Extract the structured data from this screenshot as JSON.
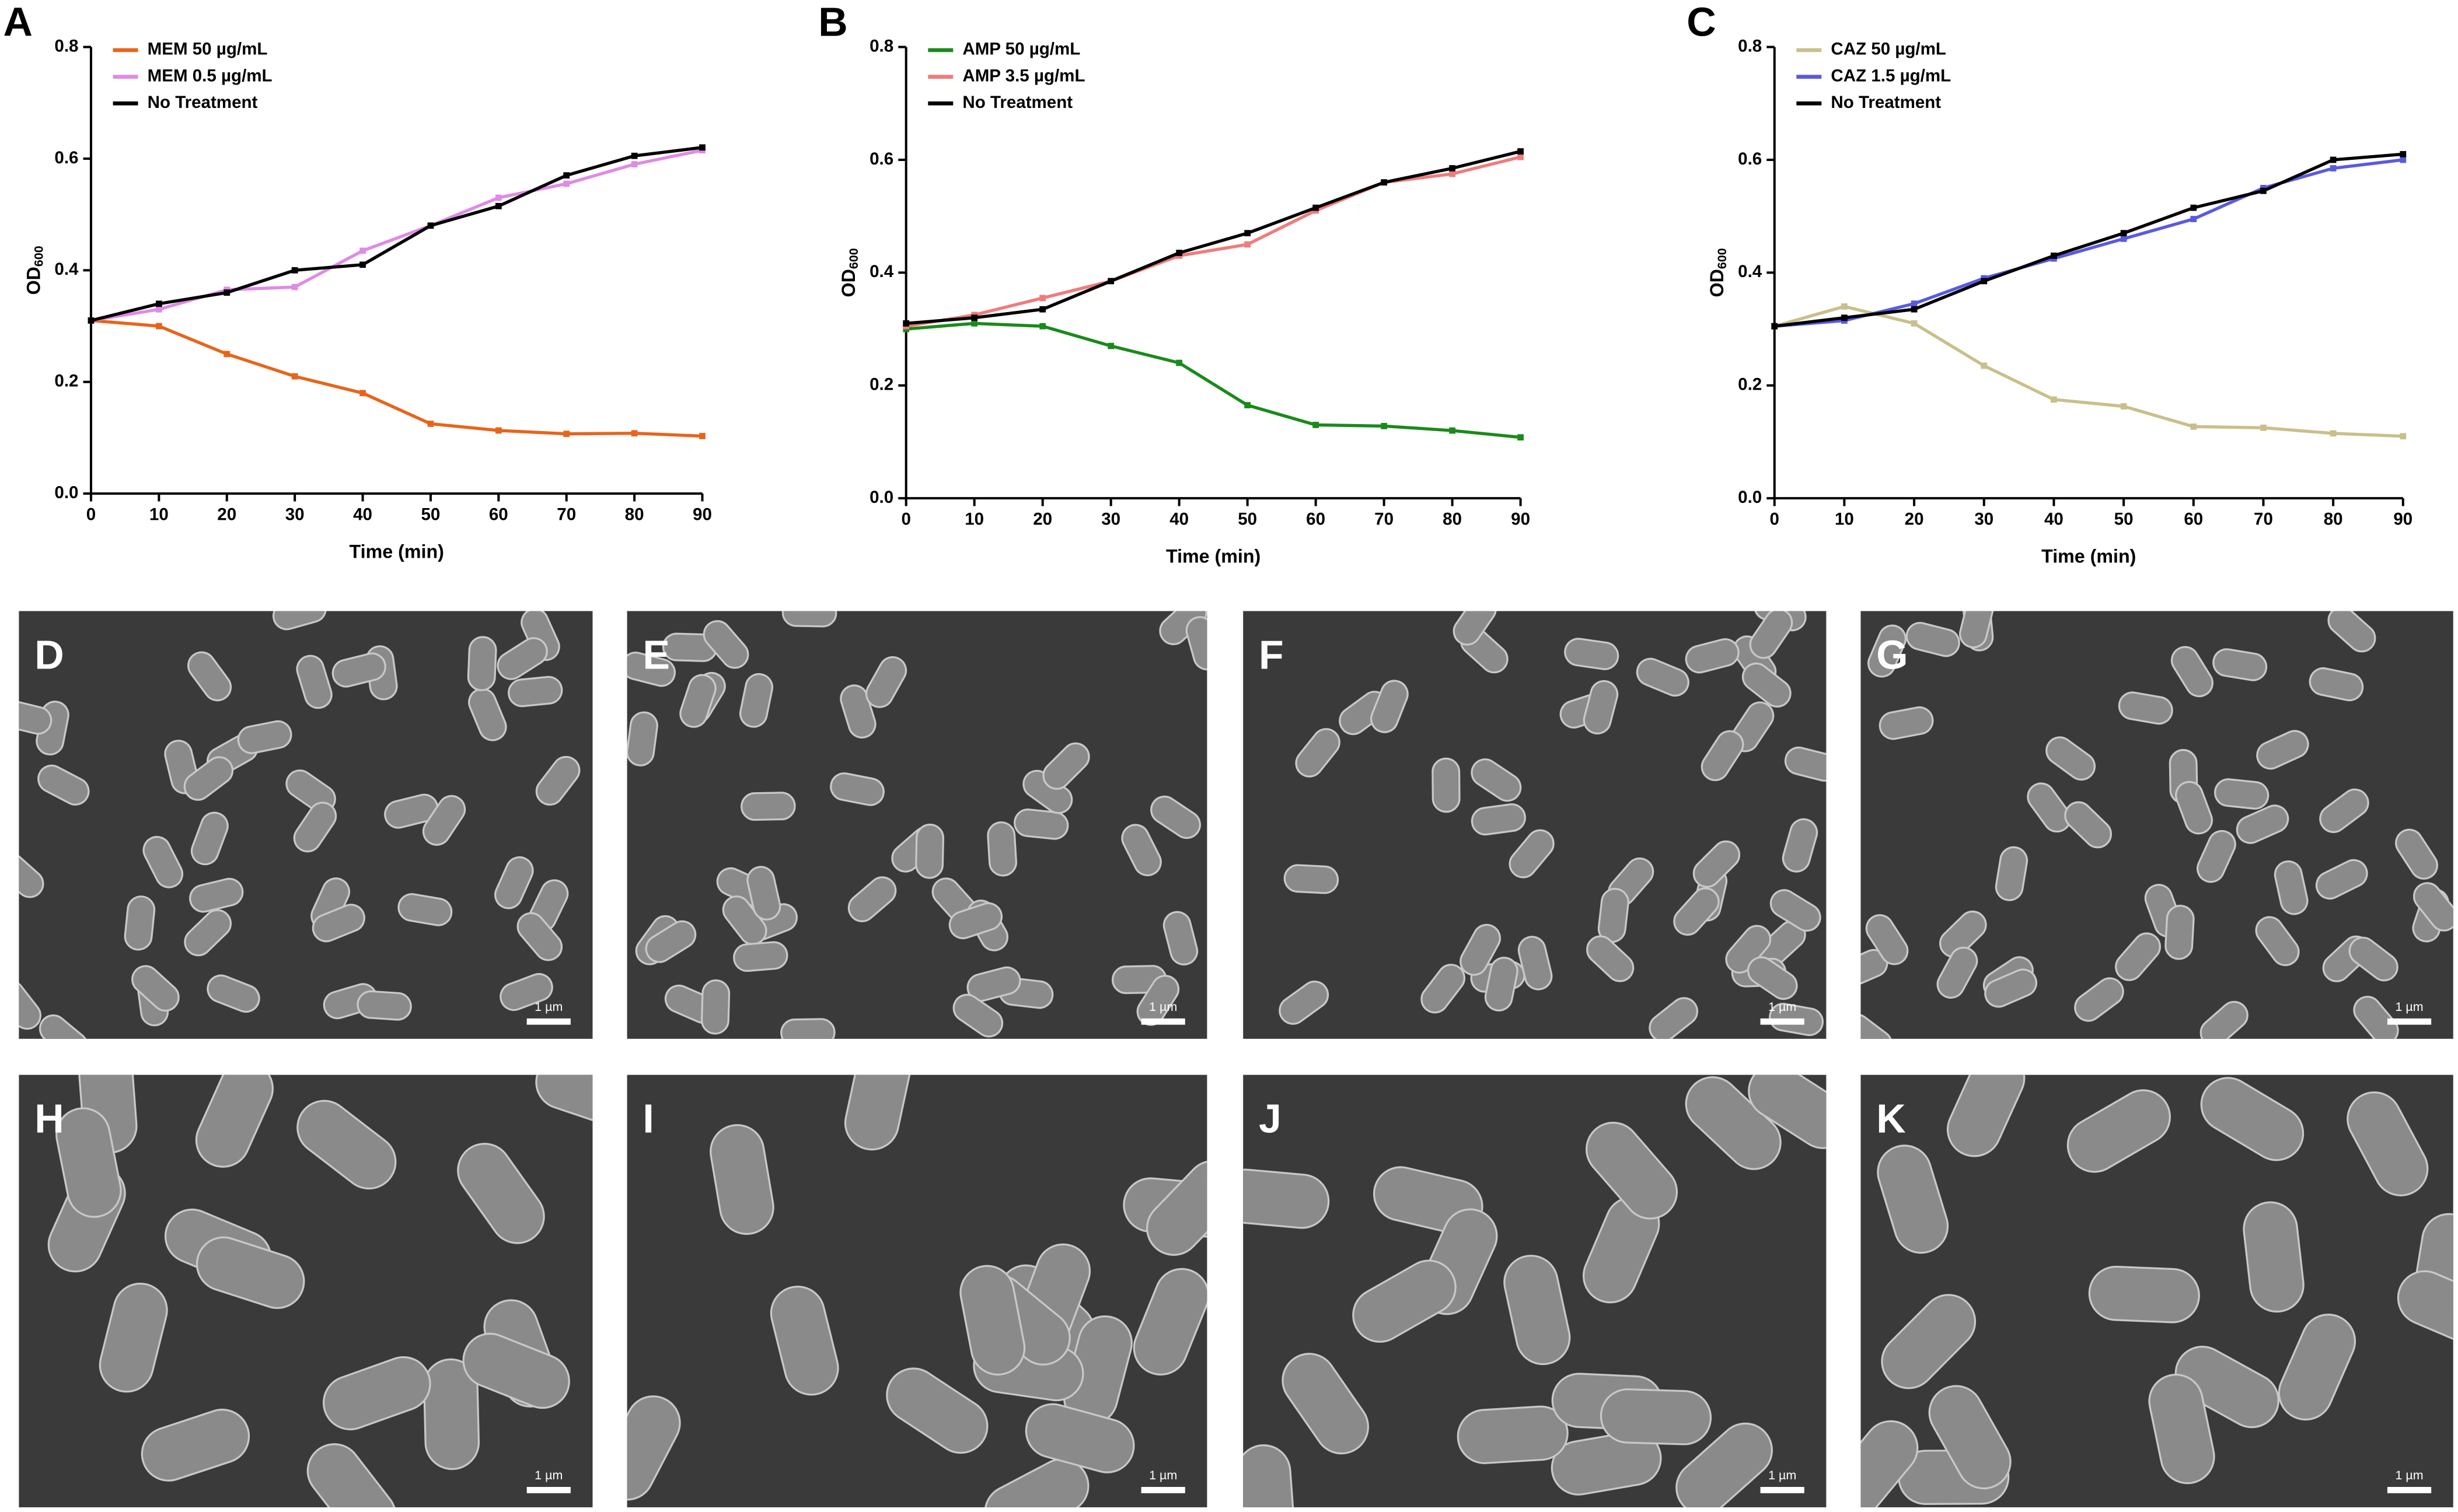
{
  "chart_data": [
    {
      "type": "line",
      "panel": "A",
      "xlabel": "Time (min)",
      "ylabel": "OD",
      "ylabel_sub": "600",
      "x": [
        0,
        10,
        20,
        30,
        40,
        50,
        60,
        70,
        80,
        90
      ],
      "xlim": [
        0,
        90
      ],
      "xticks": [
        0,
        10,
        20,
        30,
        40,
        50,
        60,
        70,
        80,
        90
      ],
      "ylim": [
        0,
        0.8
      ],
      "yticks": [
        {
          "value": 0,
          "label": "0.0"
        },
        0.2,
        0.4,
        0.6,
        0.8
      ],
      "legend": "upper left",
      "series": [
        {
          "name": "MEM 50 µg/mL",
          "color": "#e8641b",
          "values": [
            0.31,
            0.3,
            0.25,
            0.21,
            0.18,
            0.125,
            0.113,
            0.107,
            0.108,
            0.103
          ]
        },
        {
          "name": "MEM 0.5 µg/mL",
          "color": "#df8be6",
          "values": [
            0.31,
            0.33,
            0.365,
            0.37,
            0.435,
            0.48,
            0.53,
            0.555,
            0.59,
            0.615
          ]
        },
        {
          "name": "No Treatment",
          "color": "#000000",
          "values": [
            0.31,
            0.34,
            0.36,
            0.4,
            0.41,
            0.48,
            0.515,
            0.57,
            0.605,
            0.62
          ]
        }
      ]
    },
    {
      "type": "line",
      "panel": "B",
      "xlabel": "Time (min)",
      "ylabel": "OD",
      "ylabel_sub": "600",
      "x": [
        0,
        10,
        20,
        30,
        40,
        50,
        60,
        70,
        80,
        90
      ],
      "xlim": [
        0,
        90
      ],
      "xticks": [
        0,
        10,
        20,
        30,
        40,
        50,
        60,
        70,
        80,
        90
      ],
      "ylim": [
        0,
        0.8
      ],
      "yticks": [
        {
          "value": 0,
          "label": "0.0"
        },
        0.2,
        0.4,
        0.6,
        0.8
      ],
      "legend": "upper left",
      "series": [
        {
          "name": "AMP 50 µg/mL",
          "color": "#1a8a1a",
          "values": [
            0.3,
            0.31,
            0.305,
            0.27,
            0.24,
            0.165,
            0.13,
            0.128,
            0.12,
            0.108
          ]
        },
        {
          "name": "AMP 3.5 µg/mL",
          "color": "#f07b7b",
          "values": [
            0.305,
            0.325,
            0.355,
            0.385,
            0.43,
            0.45,
            0.51,
            0.56,
            0.575,
            0.605
          ]
        },
        {
          "name": "No Treatment",
          "color": "#000000",
          "values": [
            0.31,
            0.32,
            0.335,
            0.385,
            0.435,
            0.47,
            0.515,
            0.56,
            0.585,
            0.615
          ]
        }
      ]
    },
    {
      "type": "line",
      "panel": "C",
      "xlabel": "Time (min)",
      "ylabel": "OD",
      "ylabel_sub": "600",
      "x": [
        0,
        10,
        20,
        30,
        40,
        50,
        60,
        70,
        80,
        90
      ],
      "xlim": [
        0,
        90
      ],
      "xticks": [
        0,
        10,
        20,
        30,
        40,
        50,
        60,
        70,
        80,
        90
      ],
      "ylim": [
        0,
        0.8
      ],
      "yticks": [
        {
          "value": 0,
          "label": "0.0"
        },
        0.2,
        0.4,
        0.6,
        0.8
      ],
      "legend": "upper left",
      "series": [
        {
          "name": "CAZ 50 µg/mL",
          "color": "#c9bf8b",
          "values": [
            0.305,
            0.34,
            0.31,
            0.235,
            0.175,
            0.163,
            0.127,
            0.125,
            0.115,
            0.11
          ]
        },
        {
          "name": "CAZ 1.5 µg/mL",
          "color": "#5a5ae0",
          "values": [
            0.305,
            0.315,
            0.345,
            0.39,
            0.425,
            0.46,
            0.495,
            0.55,
            0.585,
            0.6
          ]
        },
        {
          "name": "No Treatment",
          "color": "#000000",
          "values": [
            0.305,
            0.32,
            0.335,
            0.385,
            0.43,
            0.47,
            0.515,
            0.545,
            0.6,
            0.61
          ]
        }
      ]
    }
  ],
  "images": [
    {
      "label": "D",
      "scale": "1 µm"
    },
    {
      "label": "E",
      "scale": "1 µm"
    },
    {
      "label": "F",
      "scale": "1 µm"
    },
    {
      "label": "G",
      "scale": "1 µm"
    },
    {
      "label": "H",
      "scale": "1 µm"
    },
    {
      "label": "I",
      "scale": "1 µm"
    },
    {
      "label": "J",
      "scale": "1 µm"
    },
    {
      "label": "K",
      "scale": "1 µm"
    }
  ]
}
